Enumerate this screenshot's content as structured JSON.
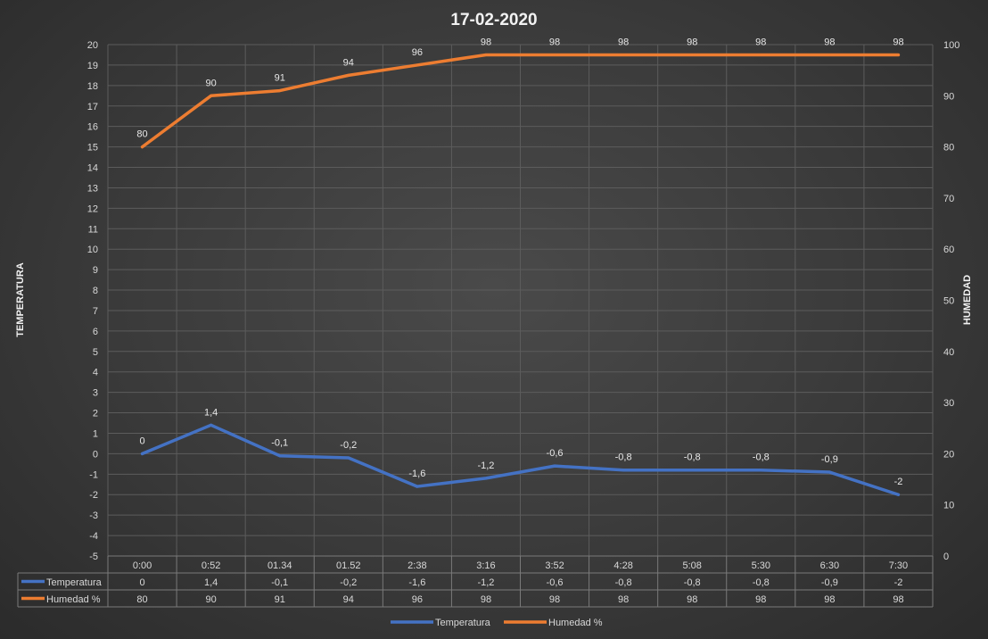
{
  "chart_data": {
    "type": "line",
    "title": "17-02-2020",
    "ylabel_left": "TEMPERATURA",
    "ylabel_right": "HUMEDAD",
    "categories": [
      "0:00",
      "0:52",
      "01.34",
      "01.52",
      "2:38",
      "3:16",
      "3:52",
      "4:28",
      "5:08",
      "5:30",
      "6:30",
      "7:30"
    ],
    "y_left_lim": [
      -5,
      20
    ],
    "y_right_lim": [
      0,
      100
    ],
    "y_left_ticks": [
      20,
      19,
      18,
      17,
      16,
      15,
      14,
      13,
      12,
      11,
      10,
      9,
      8,
      7,
      6,
      5,
      4,
      3,
      2,
      1,
      0,
      -1,
      -2,
      -3,
      -4,
      -5
    ],
    "y_right_ticks": [
      100,
      90,
      80,
      70,
      60,
      50,
      40,
      30,
      20,
      10,
      0
    ],
    "grid": true,
    "legend": "bottom",
    "series": [
      {
        "name": "Temperatura",
        "axis": "left",
        "color": "#4472c4",
        "values": [
          0,
          1.4,
          -0.1,
          -0.2,
          -1.6,
          -1.2,
          -0.6,
          -0.8,
          -0.8,
          -0.8,
          -0.9,
          -2
        ],
        "labels": [
          "0",
          "1,4",
          "-0,1",
          "-0,2",
          "-1,6",
          "-1,2",
          "-0,6",
          "-0,8",
          "-0,8",
          "-0,8",
          "-0,9",
          "-2"
        ]
      },
      {
        "name": "Humedad %",
        "axis": "right",
        "color": "#ed7d31",
        "values": [
          80,
          90,
          91,
          94,
          96,
          98,
          98,
          98,
          98,
          98,
          98,
          98
        ],
        "labels": [
          "80",
          "90",
          "91",
          "94",
          "96",
          "98",
          "98",
          "98",
          "98",
          "98",
          "98",
          "98"
        ]
      }
    ]
  }
}
